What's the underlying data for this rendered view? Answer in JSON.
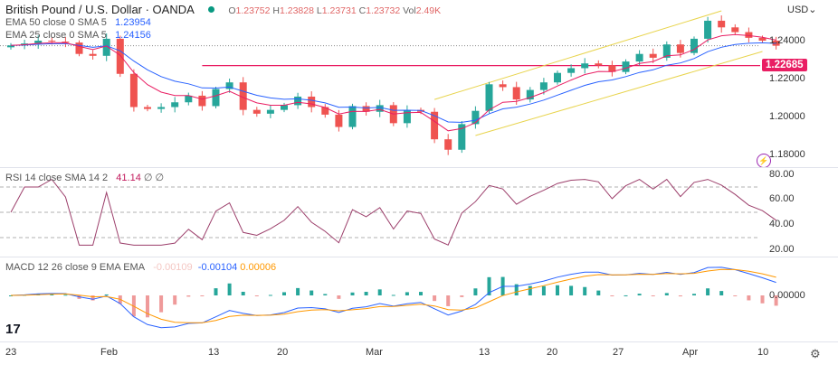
{
  "header": {
    "symbol_title": "British Pound / U.S. Dollar · OANDA",
    "ohlc": {
      "o_label": "O",
      "o": "1.23752",
      "h_label": "H",
      "h": "1.23828",
      "l_label": "L",
      "l": "1.23731",
      "c_label": "C",
      "c": "1.23732",
      "vol_label": "Vol",
      "vol": "2.49K"
    },
    "market_status_color": "#089981",
    "indicators": [
      {
        "label": "EMA 50 close 0 SMA 5",
        "value": "1.23954",
        "color": "#2962ff"
      },
      {
        "label": "EMA 25 close 0 SMA 5",
        "value": "1.24156",
        "color": "#e91e63"
      }
    ]
  },
  "price_axis": {
    "currency": "USD",
    "ticks": [
      "1.24000",
      "1.22000",
      "1.20000",
      "1.18000"
    ],
    "highlight_label": "1.22685",
    "highlight_color": "#e91e63"
  },
  "rsi": {
    "label": "RSI 14 close SMA 14 2",
    "value": "41.14",
    "extra": "∅ ∅",
    "ticks": [
      "80.00",
      "60.00",
      "40.00",
      "20.00"
    ],
    "color": "#9c3f6b"
  },
  "macd": {
    "label": "MACD 12 26 close 9 EMA EMA",
    "hist": "-0.00109",
    "macd": "-0.00104",
    "signal": "0.00006",
    "tick": "0.00000",
    "macd_color": "#2962ff",
    "signal_color": "#ff9800"
  },
  "time_axis": {
    "labels": [
      "23",
      "Feb",
      "13",
      "20",
      "Mar",
      "13",
      "20",
      "27",
      "Apr",
      "10"
    ]
  },
  "icons": {
    "logo": "tradingview-logo",
    "settings": "gear-icon",
    "alert": "lightning-icon"
  },
  "colors": {
    "up": "#26a69a",
    "down": "#ef5350"
  },
  "chart_data": {
    "type": "candlestick",
    "ylim": [
      1.17,
      1.26
    ],
    "dates": [
      "Jan 23",
      "Jan 24",
      "Jan 25",
      "Jan 26",
      "Jan 27",
      "Jan 30",
      "Jan 31",
      "Feb 1",
      "Feb 2",
      "Feb 3",
      "Feb 6",
      "Feb 7",
      "Feb 8",
      "Feb 9",
      "Feb 10",
      "Feb 13",
      "Feb 14",
      "Feb 15",
      "Feb 16",
      "Feb 17",
      "Feb 20",
      "Feb 21",
      "Feb 22",
      "Feb 23",
      "Feb 24",
      "Feb 27",
      "Feb 28",
      "Mar 1",
      "Mar 2",
      "Mar 3",
      "Mar 6",
      "Mar 7",
      "Mar 8",
      "Mar 9",
      "Mar 10",
      "Mar 13",
      "Mar 14",
      "Mar 15",
      "Mar 16",
      "Mar 17",
      "Mar 20",
      "Mar 21",
      "Mar 22",
      "Mar 23",
      "Mar 24",
      "Mar 27",
      "Mar 28",
      "Mar 29",
      "Mar 30",
      "Mar 31",
      "Apr 3",
      "Apr 4",
      "Apr 5",
      "Apr 6",
      "Apr 7",
      "Apr 10",
      "Apr 11"
    ],
    "close": [
      1.2375,
      1.2385,
      1.24,
      1.2395,
      1.239,
      1.233,
      1.232,
      1.241,
      1.2225,
      1.205,
      1.204,
      1.205,
      1.2075,
      1.211,
      1.2055,
      1.2145,
      1.218,
      1.2035,
      1.2015,
      1.2035,
      1.206,
      1.2105,
      1.205,
      1.201,
      1.1945,
      1.2055,
      1.2025,
      1.206,
      1.1965,
      1.2035,
      1.2025,
      1.188,
      1.1825,
      1.196,
      1.203,
      1.217,
      1.2155,
      1.209,
      1.214,
      1.218,
      1.223,
      1.2255,
      1.228,
      1.227,
      1.2235,
      1.229,
      1.233,
      1.231,
      1.238,
      1.2335,
      1.241,
      1.2505,
      1.247,
      1.2445,
      1.2415,
      1.24,
      1.23732
    ],
    "horizontal_level": {
      "price": 1.22685,
      "from": "Feb 10"
    },
    "last_price": 1.23732,
    "channel": {
      "upper": [
        {
          "date": "Mar 7",
          "price": 1.209
        },
        {
          "date": "Apr 5",
          "price": 1.2557
        }
      ],
      "lower": [
        {
          "date": "Mar 10",
          "price": 1.19
        },
        {
          "date": "Apr 10",
          "price": 1.2343
        }
      ],
      "color": "#e8d44d"
    },
    "rsi_levels": [
      70,
      50,
      30
    ],
    "grid": false
  }
}
